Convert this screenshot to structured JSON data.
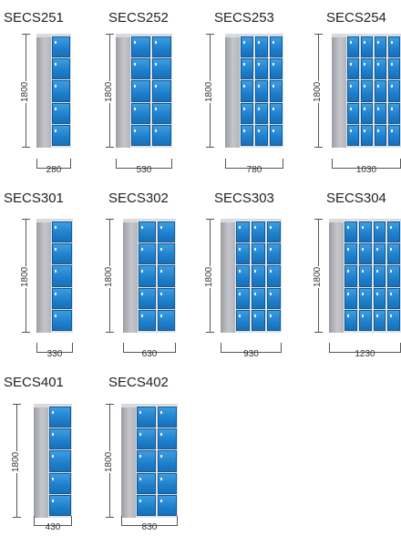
{
  "height_label": "1800",
  "lockers": [
    {
      "model": "SECS251",
      "width": "280",
      "columns": 1,
      "tiers": 5
    },
    {
      "model": "SECS252",
      "width": "530",
      "columns": 2,
      "tiers": 5
    },
    {
      "model": "SECS253",
      "width": "780",
      "columns": 3,
      "tiers": 5
    },
    {
      "model": "SECS254",
      "width": "1030",
      "columns": 4,
      "tiers": 5
    },
    {
      "model": "SECS301",
      "width": "330",
      "columns": 1,
      "tiers": 5
    },
    {
      "model": "SECS302",
      "width": "630",
      "columns": 2,
      "tiers": 5
    },
    {
      "model": "SECS303",
      "width": "930",
      "columns": 3,
      "tiers": 5
    },
    {
      "model": "SECS304",
      "width": "1230",
      "columns": 4,
      "tiers": 5
    },
    {
      "model": "SECS401",
      "width": "430",
      "columns": 1,
      "tiers": 5
    },
    {
      "model": "SECS402",
      "width": "830",
      "columns": 2,
      "tiers": 5
    }
  ],
  "colors": {
    "door_blue": "#1f82cf",
    "cabinet_grey": "#b8babf"
  }
}
